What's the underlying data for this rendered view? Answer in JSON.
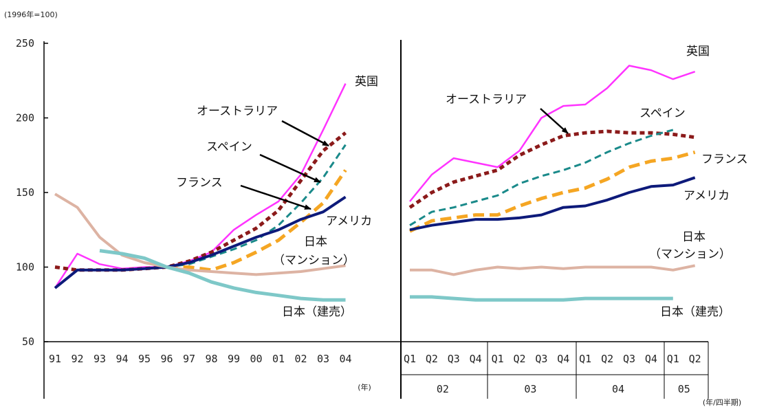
{
  "chart_data": {
    "type": "line",
    "unit_label": "(1996年=100)",
    "y_ticks": [
      "250",
      "200",
      "150",
      "100",
      "50"
    ],
    "ylim": [
      50,
      250
    ],
    "left": {
      "x": [
        "91",
        "92",
        "93",
        "94",
        "95",
        "96",
        "97",
        "98",
        "99",
        "00",
        "01",
        "02",
        "03",
        "04"
      ],
      "xlabel": "(年)",
      "series": [
        {
          "name": "英国",
          "color": "#ff33ff",
          "style": "solid",
          "values": [
            86,
            109,
            102,
            99,
            100,
            100,
            104,
            110,
            125,
            135,
            144,
            162,
            192,
            223
          ]
        },
        {
          "name": "オーストラリア",
          "color": "#8b1a1a",
          "style": "dotted",
          "values": [
            100,
            98,
            98,
            98,
            99,
            100,
            104,
            110,
            118,
            126,
            138,
            158,
            178,
            190
          ]
        },
        {
          "name": "スペイン",
          "color": "#1a8a8a",
          "style": "dashed",
          "values": [
            null,
            null,
            null,
            null,
            null,
            100,
            102,
            107,
            112,
            118,
            128,
            143,
            160,
            182
          ]
        },
        {
          "name": "フランス",
          "color": "#f5a623",
          "style": "dashed",
          "values": [
            null,
            null,
            null,
            null,
            null,
            100,
            100,
            98,
            103,
            110,
            118,
            130,
            143,
            165
          ]
        },
        {
          "name": "アメリカ",
          "color": "#0d1a7a",
          "style": "solid",
          "values": [
            86,
            98,
            98,
            98,
            99,
            100,
            103,
            108,
            114,
            120,
            125,
            132,
            137,
            147
          ]
        },
        {
          "name": "日本（マンション）",
          "color": "#ddb3a3",
          "style": "solid",
          "values": [
            149,
            140,
            120,
            108,
            103,
            100,
            98,
            97,
            96,
            95,
            96,
            97,
            99,
            101
          ]
        },
        {
          "name": "日本（建売）",
          "color": "#7ec8c8",
          "style": "solid",
          "values": [
            null,
            null,
            111,
            109,
            106,
            100,
            96,
            90,
            86,
            83,
            81,
            79,
            78,
            78
          ]
        }
      ],
      "labels": {
        "uk": "英国",
        "australia": "オーストラリア",
        "spain": "スペイン",
        "france": "フランス",
        "usa": "アメリカ",
        "japan_condo_1": "日本",
        "japan_condo_2": "（マンション）",
        "japan_house": "日本（建売）"
      }
    },
    "right": {
      "quarters": [
        "Q1",
        "Q2",
        "Q3",
        "Q4",
        "Q1",
        "Q2",
        "Q3",
        "Q4",
        "Q1",
        "Q2",
        "Q3",
        "Q4",
        "Q1",
        "Q2"
      ],
      "years": [
        {
          "label": "02",
          "span": 4
        },
        {
          "label": "03",
          "span": 4
        },
        {
          "label": "04",
          "span": 4
        },
        {
          "label": "05",
          "span": 2
        }
      ],
      "xlabel": "(年/四半期)",
      "series": [
        {
          "name": "英国",
          "color": "#ff33ff",
          "style": "solid",
          "values": [
            144,
            162,
            173,
            170,
            167,
            178,
            200,
            208,
            209,
            220,
            235,
            232,
            226,
            231
          ]
        },
        {
          "name": "オーストラリア",
          "color": "#8b1a1a",
          "style": "dotted",
          "values": [
            140,
            150,
            157,
            161,
            165,
            175,
            182,
            188,
            190,
            191,
            190,
            190,
            189,
            187
          ]
        },
        {
          "name": "スペイン",
          "color": "#1a8a8a",
          "style": "dashed",
          "values": [
            128,
            137,
            140,
            144,
            148,
            156,
            161,
            165,
            170,
            177,
            183,
            188,
            192,
            null
          ]
        },
        {
          "name": "フランス",
          "color": "#f5a623",
          "style": "dashed",
          "values": [
            124,
            131,
            133,
            135,
            135,
            141,
            146,
            150,
            153,
            159,
            167,
            171,
            173,
            177
          ]
        },
        {
          "name": "アメリカ",
          "color": "#0d1a7a",
          "style": "solid",
          "values": [
            125,
            128,
            130,
            132,
            132,
            133,
            135,
            140,
            141,
            145,
            150,
            154,
            155,
            160
          ]
        },
        {
          "name": "日本（マンション）",
          "color": "#ddb3a3",
          "style": "solid",
          "values": [
            98,
            98,
            95,
            98,
            100,
            99,
            100,
            99,
            100,
            100,
            100,
            100,
            98,
            101
          ]
        },
        {
          "name": "日本（建売）",
          "color": "#7ec8c8",
          "style": "solid",
          "values": [
            80,
            80,
            79,
            78,
            78,
            78,
            78,
            78,
            79,
            79,
            79,
            79,
            79,
            null
          ]
        }
      ],
      "labels": {
        "uk": "英国",
        "australia": "オーストラリア",
        "spain": "スペイン",
        "france": "フランス",
        "usa": "アメリカ",
        "japan_condo_1": "日本",
        "japan_condo_2": "（マンション）",
        "japan_house": "日本（建売）"
      }
    }
  }
}
